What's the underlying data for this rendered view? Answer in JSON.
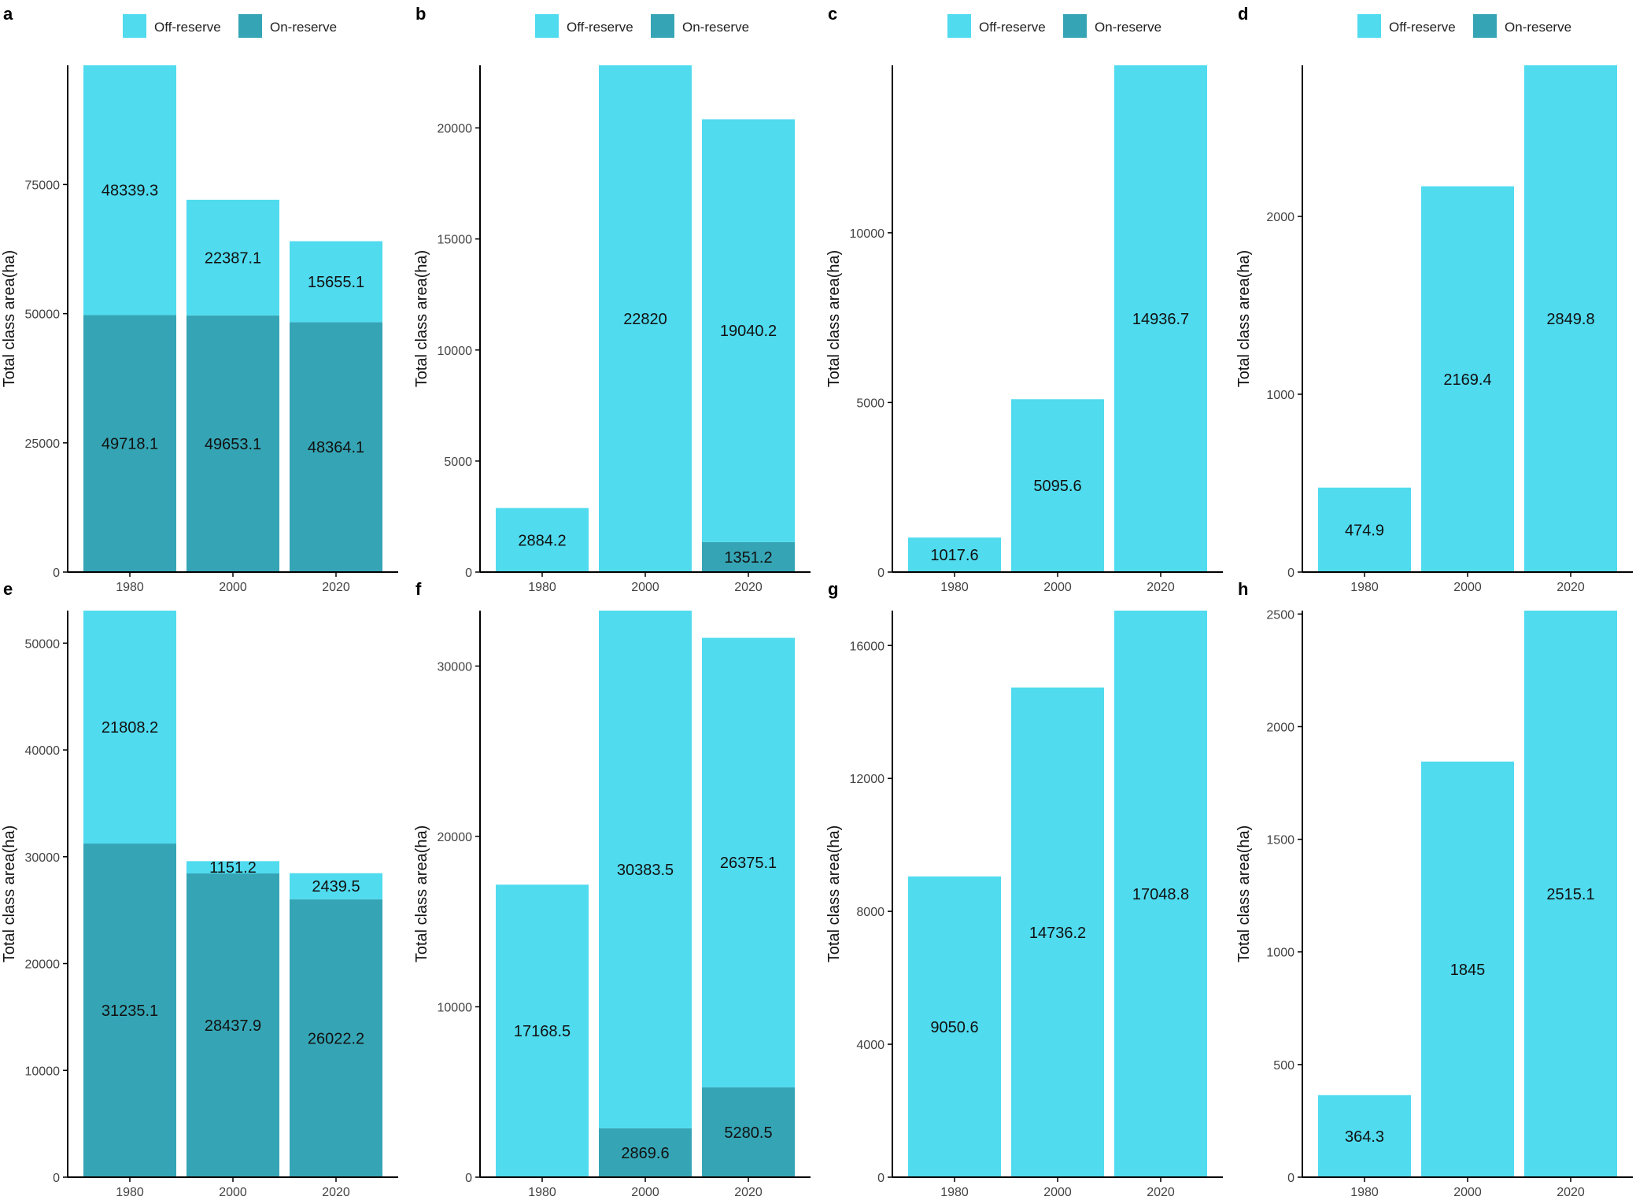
{
  "colors": {
    "off_reserve": "#50DBEF",
    "on_reserve": "#35A5B5",
    "axis": "#000000"
  },
  "chart_data": [
    {
      "panel": "a",
      "type": "bar",
      "stacked": true,
      "categories": [
        "1980",
        "2000",
        "2020"
      ],
      "series": [
        {
          "name": "Off-reserve",
          "values": [
            48339.3,
            22387.1,
            15655.1
          ]
        },
        {
          "name": "On-reserve",
          "values": [
            49718.1,
            49653.1,
            48364.1
          ]
        }
      ],
      "xlabel": "",
      "ylabel": "Total class area(ha)",
      "ylim": [
        0,
        98057.4
      ],
      "yticks": [
        0,
        25000,
        50000,
        75000
      ],
      "legend": "top-center",
      "grid": false
    },
    {
      "panel": "b",
      "type": "bar",
      "stacked": true,
      "categories": [
        "1980",
        "2000",
        "2020"
      ],
      "series": [
        {
          "name": "Off-reserve",
          "values": [
            2884.2,
            22820,
            19040.2
          ]
        },
        {
          "name": "On-reserve",
          "values": [
            0,
            0,
            1351.2
          ]
        }
      ],
      "xlabel": "",
      "ylabel": "Total class area(ha)",
      "ylim": [
        0,
        22820
      ],
      "yticks": [
        0,
        5000,
        10000,
        15000,
        20000
      ],
      "legend": "top-center",
      "grid": false
    },
    {
      "panel": "c",
      "type": "bar",
      "stacked": true,
      "categories": [
        "1980",
        "2000",
        "2020"
      ],
      "series": [
        {
          "name": "Off-reserve",
          "values": [
            1017.6,
            5095.6,
            14936.7
          ]
        },
        {
          "name": "On-reserve",
          "values": [
            0,
            0,
            0
          ]
        }
      ],
      "xlabel": "",
      "ylabel": "Total class area(ha)",
      "ylim": [
        0,
        14936.7
      ],
      "yticks": [
        0,
        5000,
        10000
      ],
      "legend": "top-center",
      "grid": false
    },
    {
      "panel": "d",
      "type": "bar",
      "stacked": true,
      "categories": [
        "1980",
        "2000",
        "2020"
      ],
      "series": [
        {
          "name": "Off-reserve",
          "values": [
            474.9,
            2169.4,
            2849.8
          ]
        },
        {
          "name": "On-reserve",
          "values": [
            0,
            0,
            0
          ]
        }
      ],
      "xlabel": "",
      "ylabel": "Total class area(ha)",
      "ylim": [
        0,
        2849.8
      ],
      "yticks": [
        0,
        1000,
        2000
      ],
      "legend": "top-center",
      "grid": false
    },
    {
      "panel": "e",
      "type": "bar",
      "stacked": true,
      "categories": [
        "1980",
        "2000",
        "2020"
      ],
      "series": [
        {
          "name": "Off-reserve",
          "values": [
            21808.2,
            1151.2,
            2439.5
          ]
        },
        {
          "name": "On-reserve",
          "values": [
            31235.1,
            28437.9,
            26022.2
          ]
        }
      ],
      "xlabel": "",
      "ylabel": "Total class area(ha)",
      "ylim": [
        0,
        53043.3
      ],
      "yticks": [
        0,
        10000,
        20000,
        30000,
        40000,
        50000
      ],
      "legend": "none",
      "grid": false
    },
    {
      "panel": "f",
      "type": "bar",
      "stacked": true,
      "categories": [
        "1980",
        "2000",
        "2020"
      ],
      "series": [
        {
          "name": "Off-reserve",
          "values": [
            17168.5,
            30383.5,
            26375.1
          ]
        },
        {
          "name": "On-reserve",
          "values": [
            0,
            2869.6,
            5280.5
          ]
        }
      ],
      "xlabel": "",
      "ylabel": "Total class area(ha)",
      "ylim": [
        0,
        33253.1
      ],
      "yticks": [
        0,
        10000,
        20000,
        30000
      ],
      "legend": "none",
      "grid": false
    },
    {
      "panel": "g",
      "type": "bar",
      "stacked": true,
      "categories": [
        "1980",
        "2000",
        "2020"
      ],
      "series": [
        {
          "name": "Off-reserve",
          "values": [
            9050.6,
            14736.2,
            17048.8
          ]
        },
        {
          "name": "On-reserve",
          "values": [
            0,
            0,
            0
          ]
        }
      ],
      "xlabel": "",
      "ylabel": "Total class area(ha)",
      "ylim": [
        0,
        17048.8
      ],
      "yticks": [
        0,
        4000,
        8000,
        12000,
        16000
      ],
      "legend": "none",
      "grid": false
    },
    {
      "panel": "h",
      "type": "bar",
      "stacked": true,
      "categories": [
        "1980",
        "2000",
        "2020"
      ],
      "series": [
        {
          "name": "Off-reserve",
          "values": [
            364.3,
            1845,
            2515.1
          ]
        },
        {
          "name": "On-reserve",
          "values": [
            0,
            0,
            0
          ]
        }
      ],
      "xlabel": "",
      "ylabel": "Total class area(ha)",
      "ylim": [
        0,
        2515.1
      ],
      "yticks": [
        0,
        500,
        1000,
        1500,
        2000,
        2500
      ],
      "legend": "none",
      "grid": false
    }
  ]
}
